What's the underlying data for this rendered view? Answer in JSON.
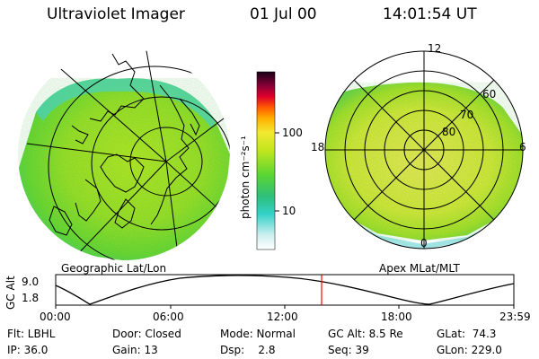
{
  "header": {
    "instrument": "Ultraviolet Imager",
    "date": "01 Jul 00",
    "time": "14:01:54 UT"
  },
  "colorbar": {
    "unit_label": "photon cm⁻²s⁻¹",
    "ticks": [
      "100",
      "10"
    ]
  },
  "left_panel": {
    "caption": "Geographic Lat/Lon"
  },
  "right_panel": {
    "caption": "Apex MLat/MLT",
    "mlt_labels": [
      "12",
      "18",
      "6",
      "0"
    ],
    "mlat_labels": [
      "60",
      "70",
      "80"
    ]
  },
  "altitude_plot": {
    "ylabel": "GC Alt",
    "yticks": [
      "9.0",
      "1.8"
    ],
    "xticks": [
      "00:00",
      "06:00",
      "12:00",
      "18:00",
      "23:59"
    ],
    "marker_color": "#ff0000"
  },
  "info": {
    "filter": "Flt: LBHL",
    "ip": "IP: 36.0",
    "door": "Door: Closed",
    "gain": "Gain: 13",
    "mode": "Mode: Normal",
    "dsp": "Dsp:    2.8",
    "gc_alt": "GC Alt: 8.5 Re",
    "seq": "Seq: 39",
    "glat": "GLat:  74.3",
    "glon": "GLon: 229.0"
  }
}
